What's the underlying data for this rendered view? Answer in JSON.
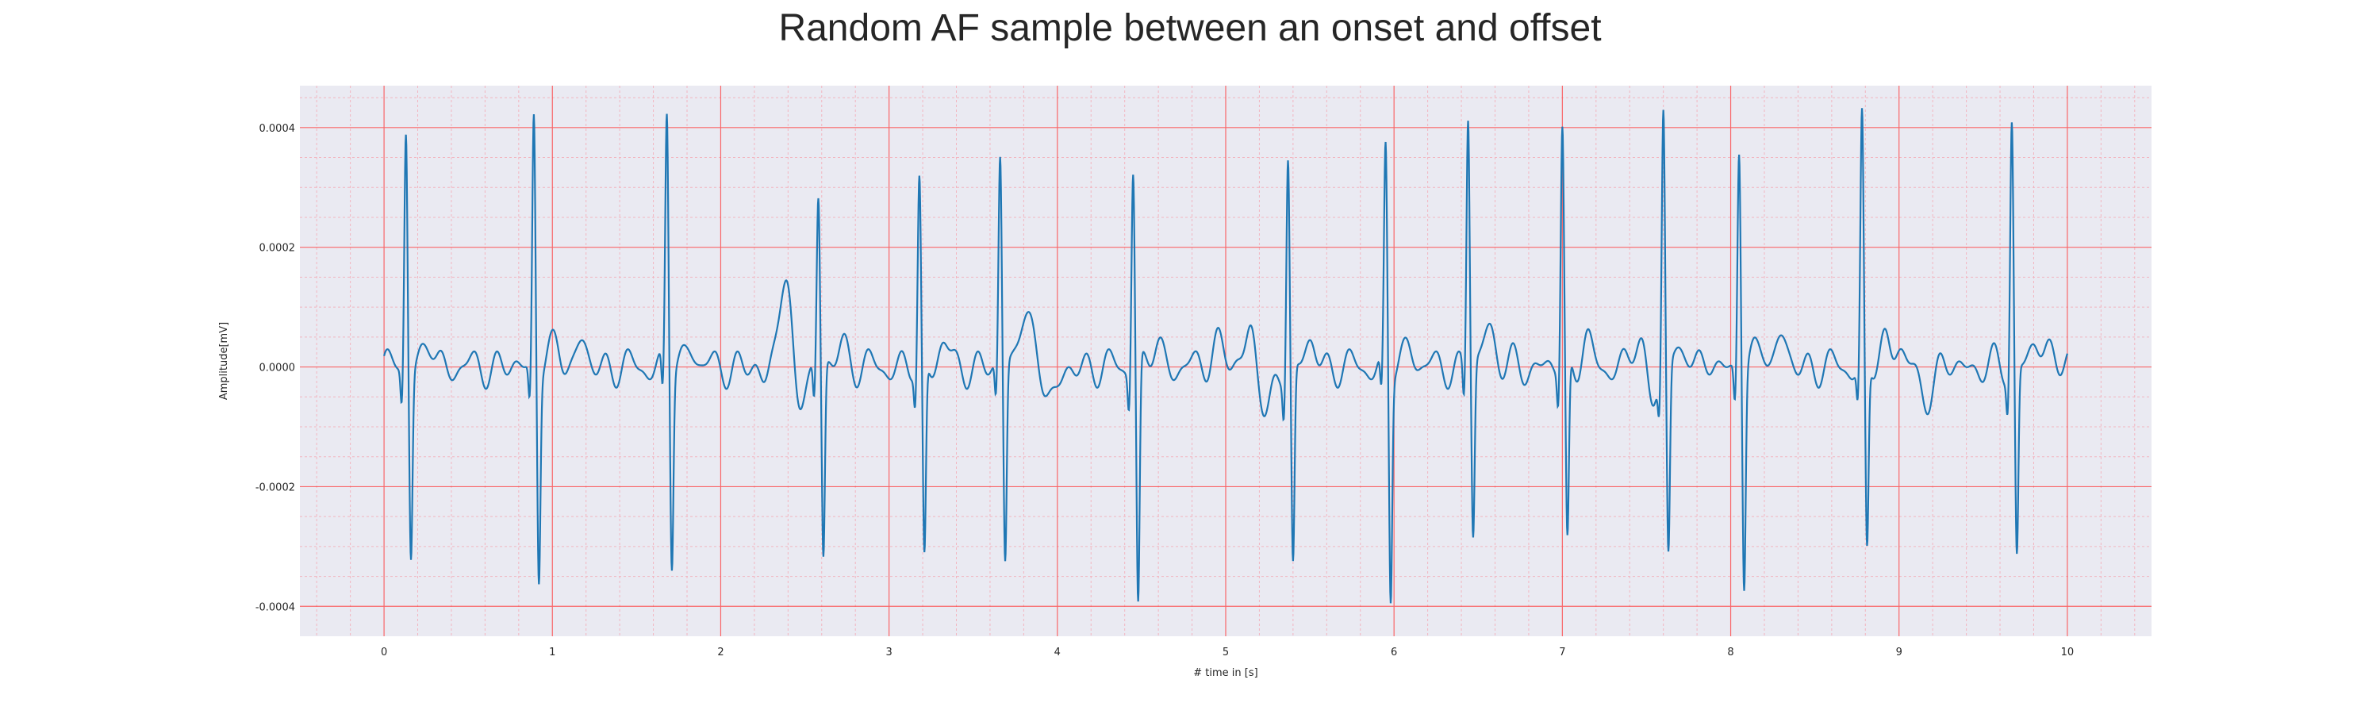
{
  "chart_data": {
    "type": "line",
    "title": "Random AF sample between an onset and offset",
    "xlabel": "# time in [s]",
    "ylabel": "Amplitude[mV]",
    "xlim": [
      -0.5,
      10.5
    ],
    "ylim": [
      -0.00045,
      0.00047
    ],
    "x_ticks": [
      0,
      1,
      2,
      3,
      4,
      5,
      6,
      7,
      8,
      9,
      10
    ],
    "y_ticks": [
      -0.0004,
      -0.0002,
      0.0,
      0.0002,
      0.0004
    ],
    "x_tick_labels": [
      "0",
      "1",
      "2",
      "3",
      "4",
      "5",
      "6",
      "7",
      "8",
      "9",
      "10"
    ],
    "y_tick_labels": [
      "-0.0004",
      "-0.0002",
      "0.0000",
      "0.0002",
      "0.0004"
    ],
    "grid": "on",
    "legend": "none",
    "background_color": "#eaeaf2",
    "major_grid_color": "#ff3b3b",
    "minor_grid_color": "#f4a8b4",
    "line_color": "#1f77b4",
    "x_range": [
      0,
      10
    ],
    "beats": [
      {
        "t": 0.13,
        "r": 0.000405,
        "s": -0.000305
      },
      {
        "t": 0.89,
        "r": 0.00043,
        "s": -0.00034
      },
      {
        "t": 1.68,
        "r": 0.000425,
        "s": -0.00032
      },
      {
        "t": 2.58,
        "r": 0.00028,
        "s": -0.000325
      },
      {
        "t": 3.18,
        "r": 0.000305,
        "s": -0.00033
      },
      {
        "t": 3.66,
        "r": 0.000345,
        "s": -0.00033
      },
      {
        "t": 4.45,
        "r": 0.00034,
        "s": -0.000405
      },
      {
        "t": 5.37,
        "r": 0.000365,
        "s": -0.00033
      },
      {
        "t": 5.95,
        "r": 0.00036,
        "s": -0.00038
      },
      {
        "t": 6.44,
        "r": 0.000425,
        "s": -0.000285
      },
      {
        "t": 7.0,
        "r": 0.0004,
        "s": -0.000305
      },
      {
        "t": 7.6,
        "r": 0.000435,
        "s": -0.000315
      },
      {
        "t": 8.05,
        "r": 0.000375,
        "s": -0.000355
      },
      {
        "t": 8.78,
        "r": 0.00041,
        "s": -0.000315
      },
      {
        "t": 9.67,
        "r": 0.000415,
        "s": -0.00032
      }
    ],
    "baseline_features": [
      {
        "t": 2.38,
        "a": 0.00015,
        "w": 0.04
      },
      {
        "t": 2.28,
        "a": 5e-05,
        "w": 0.03
      },
      {
        "t": 2.27,
        "a": -7e-05,
        "w": 0.03
      },
      {
        "t": 2.45,
        "a": -8e-05,
        "w": 0.03
      },
      {
        "t": 1.17,
        "a": 4e-05,
        "w": 0.03
      },
      {
        "t": 3.8,
        "a": 5e-05,
        "w": 0.05
      },
      {
        "t": 3.98,
        "a": -4e-05,
        "w": 0.05
      },
      {
        "t": 4.95,
        "a": 4e-05,
        "w": 0.04
      },
      {
        "t": 5.15,
        "a": 7e-05,
        "w": 0.03
      },
      {
        "t": 5.25,
        "a": -8e-05,
        "w": 0.04
      },
      {
        "t": 6.55,
        "a": 4e-05,
        "w": 0.03
      },
      {
        "t": 7.45,
        "a": 4e-05,
        "w": 0.04
      },
      {
        "t": 7.53,
        "a": -5e-05,
        "w": 0.03
      },
      {
        "t": 8.3,
        "a": 5e-05,
        "w": 0.03
      },
      {
        "t": 9.0,
        "a": 4e-05,
        "w": 0.03
      },
      {
        "t": 9.15,
        "a": -5e-05,
        "w": 0.04
      },
      {
        "t": 9.92,
        "a": 3e-05,
        "w": 0.04
      }
    ]
  }
}
